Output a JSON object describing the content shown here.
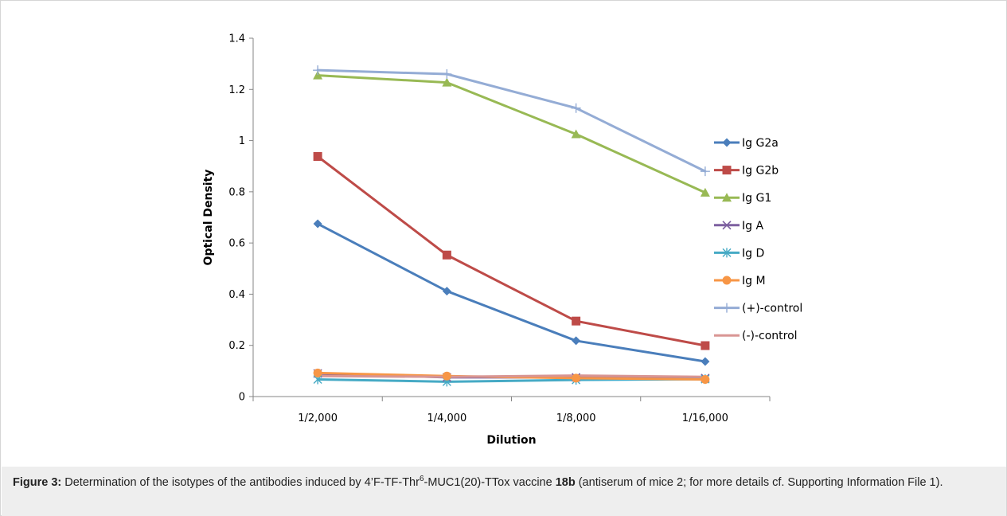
{
  "chart_data": {
    "type": "line",
    "title": "",
    "xlabel": "Dilution",
    "ylabel": "Optical Density",
    "categories": [
      "1/2,000",
      "1/4,000",
      "1/8,000",
      "1/16,000"
    ],
    "ylim": [
      0,
      1.4
    ],
    "yticks": [
      0,
      0.2,
      0.4,
      0.6,
      0.8,
      1,
      1.2,
      1.4
    ],
    "ytick_labels": [
      "0",
      "0.2",
      "0.4",
      "0.6",
      "0.8",
      "1",
      "1.2",
      "1.4"
    ],
    "grid": false,
    "legend_position": "right",
    "series": [
      {
        "name": "Ig G2a",
        "values": [
          0.675,
          0.412,
          0.218,
          0.137
        ],
        "color": "#4a7ebb",
        "marker": "diamond"
      },
      {
        "name": "Ig G2b",
        "values": [
          0.938,
          0.553,
          0.295,
          0.199
        ],
        "color": "#be4b48",
        "marker": "square"
      },
      {
        "name": "Ig G1",
        "values": [
          1.255,
          1.227,
          1.025,
          0.797
        ],
        "color": "#98b954",
        "marker": "triangle"
      },
      {
        "name": "Ig A",
        "values": [
          0.09,
          0.075,
          0.075,
          0.072
        ],
        "color": "#7d60a0",
        "marker": "x"
      },
      {
        "name": "Ig D",
        "values": [
          0.067,
          0.058,
          0.065,
          0.068
        ],
        "color": "#46aac5",
        "marker": "star"
      },
      {
        "name": "Ig M",
        "values": [
          0.092,
          0.08,
          0.072,
          0.067
        ],
        "color": "#f79646",
        "marker": "circle"
      },
      {
        "name": "(+)-control",
        "values": [
          1.275,
          1.26,
          1.127,
          0.88
        ],
        "color": "#94acd5",
        "marker": "plus"
      },
      {
        "name": "(-)-control",
        "values": [
          0.08,
          0.077,
          0.082,
          0.077
        ],
        "color": "#d99694",
        "marker": "none"
      }
    ]
  },
  "caption": {
    "label": "Figure 3:",
    "text_before_sup": " Determination of the isotypes of the antibodies induced by 4’F-TF-Thr",
    "sup": "6",
    "text_after_sup": "-MUC1(20)-TTox vaccine ",
    "compound": "18b",
    "text_end": " (antiserum of mice 2; for more details cf. Supporting Information File 1)."
  }
}
